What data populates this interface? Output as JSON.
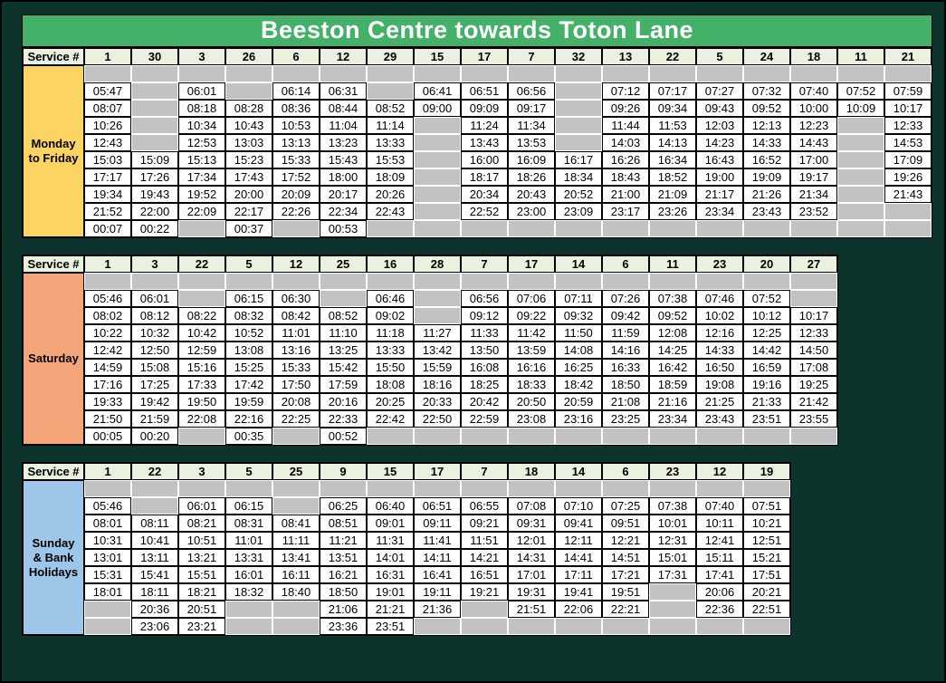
{
  "page": {
    "title": "Beeston Centre towards Toton Lane",
    "service_label": "Service #"
  },
  "colors": {
    "background": "#0d332d",
    "title_bg": "#45b168",
    "title_text": "#ffffff",
    "header_bg": "#eaf1de",
    "cell_bg": "#ffffff",
    "empty_cell_bg": "#c2c2c2",
    "monday_friday_label_bg": "#fcd462",
    "saturday_label_bg": "#f4a67a",
    "sunday_label_bg": "#9ec6e8",
    "border": "#000000"
  },
  "tables": [
    {
      "day_label": "Monday to Friday",
      "day_label_lines": [
        "Monday",
        "to Friday"
      ],
      "label_color": "#fcd462",
      "services": [
        "1",
        "30",
        "3",
        "26",
        "6",
        "12",
        "29",
        "15",
        "17",
        "7",
        "32",
        "13",
        "22",
        "5",
        "24",
        "18",
        "11",
        "21"
      ],
      "rows": [
        [
          "",
          "",
          "",
          "",
          "",
          "",
          "",
          "",
          "",
          "",
          "",
          "",
          "",
          "",
          "",
          "",
          "",
          ""
        ],
        [
          "05:47",
          "",
          "06:01",
          "",
          "06:14",
          "06:31",
          "",
          "06:41",
          "06:51",
          "06:56",
          "",
          "07:12",
          "07:17",
          "07:27",
          "07:32",
          "07:40",
          "07:52",
          "07:59"
        ],
        [
          "08:07",
          "",
          "08:18",
          "08:28",
          "08:36",
          "08:44",
          "08:52",
          "09:00",
          "09:09",
          "09:17",
          "",
          "09:26",
          "09:34",
          "09:43",
          "09:52",
          "10:00",
          "10:09",
          "10:17"
        ],
        [
          "10:26",
          "",
          "10:34",
          "10:43",
          "10:53",
          "11:04",
          "11:14",
          "",
          "11:24",
          "11:34",
          "",
          "11:44",
          "11:53",
          "12:03",
          "12:13",
          "12:23",
          "",
          "12:33"
        ],
        [
          "12:43",
          "",
          "12:53",
          "13:03",
          "13:13",
          "13:23",
          "13:33",
          "",
          "13:43",
          "13:53",
          "",
          "14:03",
          "14:13",
          "14:23",
          "14:33",
          "14:43",
          "",
          "14:53"
        ],
        [
          "15:03",
          "15:09",
          "15:13",
          "15:23",
          "15:33",
          "15:43",
          "15:53",
          "",
          "16:00",
          "16:09",
          "16:17",
          "16:26",
          "16:34",
          "16:43",
          "16:52",
          "17:00",
          "",
          "17:09"
        ],
        [
          "17:17",
          "17:26",
          "17:34",
          "17:43",
          "17:52",
          "18:00",
          "18:09",
          "",
          "18:17",
          "18:26",
          "18:34",
          "18:43",
          "18:52",
          "19:00",
          "19:09",
          "19:17",
          "",
          "19:26"
        ],
        [
          "19:34",
          "19:43",
          "19:52",
          "20:00",
          "20:09",
          "20:17",
          "20:26",
          "",
          "20:34",
          "20:43",
          "20:52",
          "21:00",
          "21:09",
          "21:17",
          "21:26",
          "21:34",
          "",
          "21:43"
        ],
        [
          "21:52",
          "22:00",
          "22:09",
          "22:17",
          "22:26",
          "22:34",
          "22:43",
          "",
          "22:52",
          "23:00",
          "23:09",
          "23:17",
          "23:26",
          "23:34",
          "23:43",
          "23:52",
          "",
          ""
        ],
        [
          "00:07",
          "00:22",
          "",
          "00:37",
          "",
          "00:53",
          "",
          "",
          "",
          "",
          "",
          "",
          "",
          "",
          "",
          "",
          "",
          ""
        ]
      ]
    },
    {
      "day_label": "Saturday",
      "day_label_lines": [
        "Saturday"
      ],
      "label_color": "#f4a67a",
      "services": [
        "1",
        "3",
        "22",
        "5",
        "12",
        "25",
        "16",
        "28",
        "7",
        "17",
        "14",
        "6",
        "11",
        "23",
        "20",
        "27"
      ],
      "rows": [
        [
          "",
          "",
          "",
          "",
          "",
          "",
          "",
          "",
          "",
          "",
          "",
          "",
          "",
          "",
          "",
          ""
        ],
        [
          "05:46",
          "06:01",
          "",
          "06:15",
          "06:30",
          "",
          "06:46",
          "",
          "06:56",
          "07:06",
          "07:11",
          "07:26",
          "07:38",
          "07:46",
          "07:52",
          ""
        ],
        [
          "08:02",
          "08:12",
          "08:22",
          "08:32",
          "08:42",
          "08:52",
          "09:02",
          "",
          "09:12",
          "09:22",
          "09:32",
          "09:42",
          "09:52",
          "10:02",
          "10:12",
          "10:17"
        ],
        [
          "10:22",
          "10:32",
          "10:42",
          "10:52",
          "11:01",
          "11:10",
          "11:18",
          "11:27",
          "11:33",
          "11:42",
          "11:50",
          "11:59",
          "12:08",
          "12:16",
          "12:25",
          "12:33"
        ],
        [
          "12:42",
          "12:50",
          "12:59",
          "13:08",
          "13:16",
          "13:25",
          "13:33",
          "13:42",
          "13:50",
          "13:59",
          "14:08",
          "14:16",
          "14:25",
          "14:33",
          "14:42",
          "14:50"
        ],
        [
          "14:59",
          "15:08",
          "15:16",
          "15:25",
          "15:33",
          "15:42",
          "15:50",
          "15:59",
          "16:08",
          "16:16",
          "16:25",
          "16:33",
          "16:42",
          "16:50",
          "16:59",
          "17:08"
        ],
        [
          "17:16",
          "17:25",
          "17:33",
          "17:42",
          "17:50",
          "17:59",
          "18:08",
          "18:16",
          "18:25",
          "18:33",
          "18:42",
          "18:50",
          "18:59",
          "19:08",
          "19:16",
          "19:25"
        ],
        [
          "19:33",
          "19:42",
          "19:50",
          "19:59",
          "20:08",
          "20:16",
          "20:25",
          "20:33",
          "20:42",
          "20:50",
          "20:59",
          "21:08",
          "21:16",
          "21:25",
          "21:33",
          "21:42"
        ],
        [
          "21:50",
          "21:59",
          "22:08",
          "22:16",
          "22:25",
          "22:33",
          "22:42",
          "22:50",
          "22:59",
          "23:08",
          "23:16",
          "23:25",
          "23:34",
          "23:43",
          "23:51",
          "23:55"
        ],
        [
          "00:05",
          "00:20",
          "",
          "00:35",
          "",
          "00:52",
          "",
          "",
          "",
          "",
          "",
          "",
          "",
          "",
          "",
          ""
        ]
      ]
    },
    {
      "day_label": "Sunday & Bank Holidays",
      "day_label_lines": [
        "Sunday",
        "& Bank",
        "Holidays"
      ],
      "label_color": "#9ec6e8",
      "services": [
        "1",
        "22",
        "3",
        "5",
        "25",
        "9",
        "15",
        "17",
        "7",
        "18",
        "14",
        "6",
        "23",
        "12",
        "19"
      ],
      "rows": [
        [
          "",
          "",
          "",
          "",
          "",
          "",
          "",
          "",
          "",
          "",
          "",
          "",
          "",
          "",
          ""
        ],
        [
          "05:46",
          "",
          "06:01",
          "06:15",
          "",
          "06:25",
          "06:40",
          "06:51",
          "06:55",
          "07:08",
          "07:10",
          "07:25",
          "07:38",
          "07:40",
          "07:51"
        ],
        [
          "08:01",
          "08:11",
          "08:21",
          "08:31",
          "08:41",
          "08:51",
          "09:01",
          "09:11",
          "09:21",
          "09:31",
          "09:41",
          "09:51",
          "10:01",
          "10:11",
          "10:21"
        ],
        [
          "10:31",
          "10:41",
          "10:51",
          "11:01",
          "11:11",
          "11:21",
          "11:31",
          "11:41",
          "11:51",
          "12:01",
          "12:11",
          "12:21",
          "12:31",
          "12:41",
          "12:51"
        ],
        [
          "13:01",
          "13:11",
          "13:21",
          "13:31",
          "13:41",
          "13:51",
          "14:01",
          "14:11",
          "14:21",
          "14:31",
          "14:41",
          "14:51",
          "15:01",
          "15:11",
          "15:21"
        ],
        [
          "15:31",
          "15:41",
          "15:51",
          "16:01",
          "16:11",
          "16:21",
          "16:31",
          "16:41",
          "16:51",
          "17:01",
          "17:11",
          "17:21",
          "17:31",
          "17:41",
          "17:51"
        ],
        [
          "18:01",
          "18:11",
          "18:21",
          "18:32",
          "18:40",
          "18:50",
          "19:01",
          "19:11",
          "19:21",
          "19:31",
          "19:41",
          "19:51",
          "",
          "20:06",
          "20:21"
        ],
        [
          "",
          "20:36",
          "20:51",
          "",
          "",
          "21:06",
          "21:21",
          "21:36",
          "",
          "21:51",
          "22:06",
          "22:21",
          "",
          "22:36",
          "22:51"
        ],
        [
          "",
          "23:06",
          "23:21",
          "",
          "",
          "23:36",
          "23:51",
          "",
          "",
          "",
          "",
          "",
          "",
          "",
          ""
        ]
      ]
    }
  ]
}
